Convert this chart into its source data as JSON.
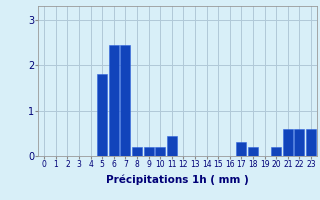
{
  "hours": [
    0,
    1,
    2,
    3,
    4,
    5,
    6,
    7,
    8,
    9,
    10,
    11,
    12,
    13,
    14,
    15,
    16,
    17,
    18,
    19,
    20,
    21,
    22,
    23
  ],
  "values": [
    0,
    0,
    0,
    0,
    0,
    1.8,
    2.45,
    2.45,
    0.2,
    0.2,
    0.2,
    0.45,
    0,
    0,
    0,
    0,
    0,
    0.3,
    0.2,
    0,
    0.2,
    0.6,
    0.6,
    0.6
  ],
  "bar_color": "#1144bb",
  "bar_edge_color": "#3366dd",
  "background_color": "#d8eff8",
  "grid_color": "#b0c8d8",
  "xlabel": "Précipitations 1h ( mm )",
  "xlim": [
    -0.5,
    23.5
  ],
  "ylim": [
    0,
    3.3
  ],
  "yticks": [
    0,
    1,
    2,
    3
  ],
  "xtick_labels": [
    "0",
    "1",
    "2",
    "3",
    "4",
    "5",
    "6",
    "7",
    "8",
    "9",
    "10",
    "11",
    "12",
    "13",
    "14",
    "15",
    "16",
    "17",
    "18",
    "19",
    "20",
    "21",
    "22",
    "23"
  ],
  "tick_fontsize": 5.5,
  "xlabel_fontsize": 7.5
}
